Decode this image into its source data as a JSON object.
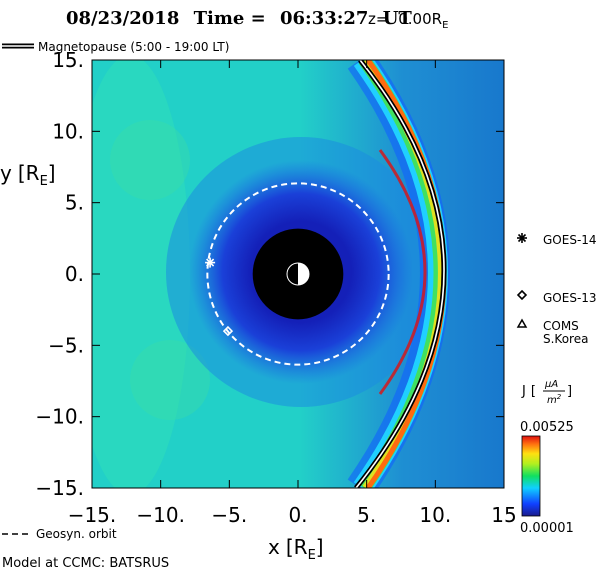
{
  "header": {
    "date": "08/23/2018",
    "time_label": "Time =",
    "time": "06:33:27",
    "time_unit": "UT",
    "z_label": "z=",
    "z_value": "0.00",
    "z_unit": "R",
    "z_unit_sub": "E"
  },
  "legend": {
    "magnetopause_label": "Magnetopause (5:00 - 19:00 LT)",
    "geosyn_label": "Geosyn. orbit"
  },
  "credit": "Model at CCMC: BATSRUS",
  "satellites": [
    {
      "name": "GOES-14",
      "symbol": "asterisk",
      "x": -6.4,
      "y": 0.8
    },
    {
      "name": "GOES-13",
      "symbol": "diamond",
      "x": -5.1,
      "y": -4.0
    },
    {
      "name": "COMS",
      "name2": "S.Korea",
      "symbol": "triangle"
    }
  ],
  "colorbar": {
    "label": "J",
    "unit_num": "µA",
    "unit_den": "m",
    "unit_den_sup": "2",
    "max": "0.00525",
    "min": "0.00001"
  },
  "chart_data": {
    "type": "heatmap",
    "quantity": "J",
    "xlabel": "x",
    "ylabel": "y",
    "axis_unit": "R",
    "axis_unit_sub": "E",
    "xlim": [
      -15,
      15
    ],
    "ylim": [
      -15,
      15
    ],
    "x_ticks": [
      -15,
      -10,
      -5,
      0,
      5,
      10,
      15
    ],
    "x_tick_labels": [
      "-15.",
      "-10.",
      "-5.",
      "0.",
      "5.",
      "10.",
      "15"
    ],
    "y_ticks": [
      15,
      10,
      5,
      0,
      -5,
      -10,
      -15
    ],
    "y_tick_labels": [
      "15.",
      "10.",
      "5.",
      "0.",
      "-5.",
      "-10.",
      "-15."
    ],
    "value_range": [
      1e-05,
      0.00525
    ],
    "earth_inner_boundary_radius": 3.3,
    "geosynchronous_orbit_radius": 6.6,
    "magnetopause_subsolar_x": 11.2,
    "colors": {
      "background": "#22d0c8",
      "inner": "#1838d8",
      "peak": "#e01010"
    }
  }
}
